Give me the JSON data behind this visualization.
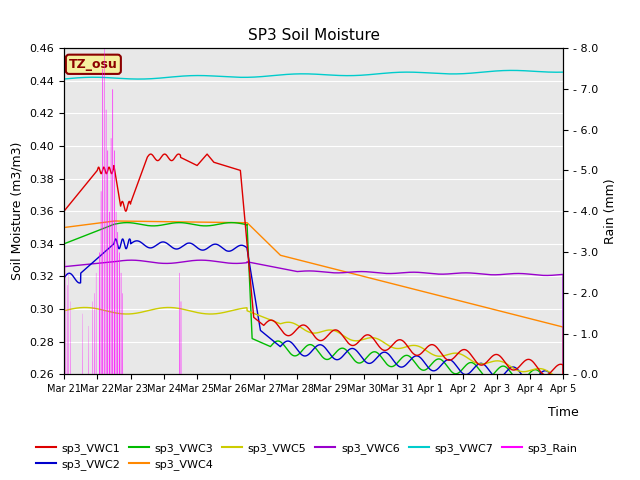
{
  "title": "SP3 Soil Moisture",
  "ylabel_left": "Soil Moisture (m3/m3)",
  "ylabel_right": "Rain (mm)",
  "xlabel": "Time",
  "ylim_left": [
    0.26,
    0.46
  ],
  "ylim_right": [
    0.0,
    8.0
  ],
  "yticks_left": [
    0.26,
    0.28,
    0.3,
    0.32,
    0.34,
    0.36,
    0.38,
    0.4,
    0.42,
    0.44,
    0.46
  ],
  "yticks_right": [
    0.0,
    1.0,
    2.0,
    3.0,
    4.0,
    5.0,
    6.0,
    7.0,
    8.0
  ],
  "tz_label": "TZ_osu",
  "tz_label_color": "#8B0000",
  "tz_label_bg": "#F5F0A0",
  "background_color": "#E8E8E8",
  "fig_bg": "#FFFFFF",
  "line_colors": {
    "VWC1": "#DD0000",
    "VWC2": "#0000CC",
    "VWC3": "#00BB00",
    "VWC4": "#FF8800",
    "VWC5": "#CCCC00",
    "VWC6": "#9900CC",
    "VWC7": "#00CCCC",
    "Rain": "#FF00FF"
  },
  "tick_labels": [
    "Mar 21",
    "Mar 22",
    "Mar 23",
    "Mar 24",
    "Mar 25",
    "Mar 26",
    "Mar 27",
    "Mar 28",
    "Mar 29",
    "Mar 30",
    "Mar 31",
    "Apr 1",
    "Apr 2",
    "Apr 3",
    "Apr 4",
    "Apr 5"
  ],
  "n_points": 5000
}
